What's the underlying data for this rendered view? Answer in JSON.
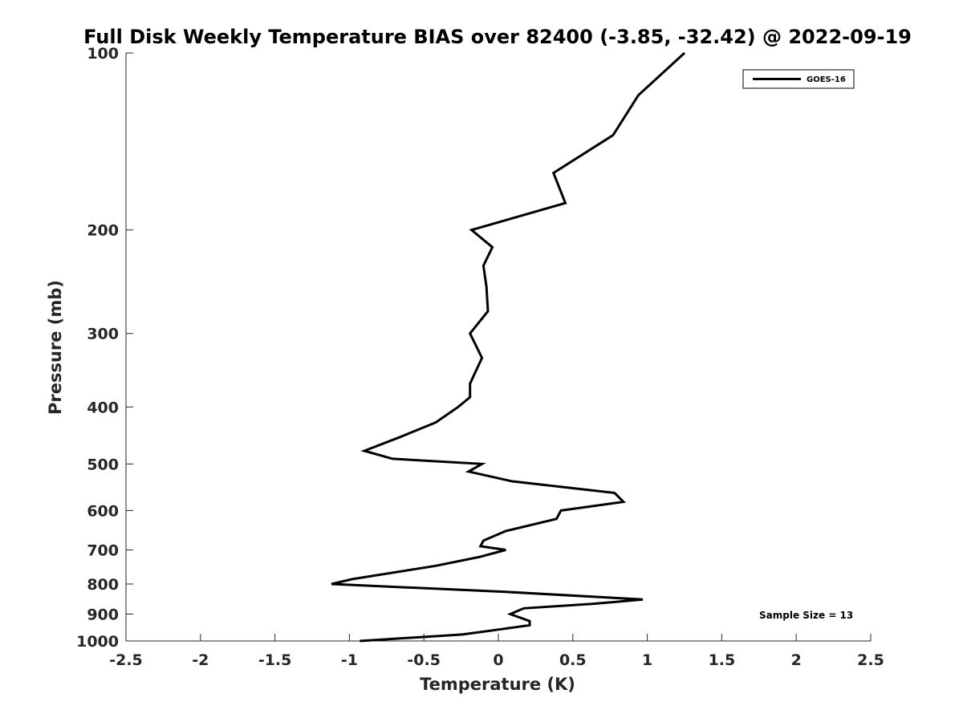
{
  "chart_data": {
    "type": "line",
    "title": "Full Disk Weekly Temperature BIAS over 82400 (-3.85, -32.42) @ 2022-09-19",
    "xlabel": "Temperature (K)",
    "ylabel": "Pressure (mb)",
    "xlim": [
      -2.5,
      2.5
    ],
    "ylim": [
      100,
      1000
    ],
    "y_scale": "log",
    "y_reversed": true,
    "grid": false,
    "legend_position": "top-right",
    "x_ticks": [
      -2.5,
      -2,
      -1.5,
      -1,
      -0.5,
      0,
      0.5,
      1,
      1.5,
      2,
      2.5
    ],
    "x_tick_labels": [
      "-2.5",
      "-2",
      "-1.5",
      "-1",
      "-0.5",
      "0",
      "0.5",
      "1",
      "1.5",
      "2",
      "2.5"
    ],
    "y_ticks": [
      100,
      200,
      300,
      400,
      500,
      600,
      700,
      800,
      900,
      1000
    ],
    "y_tick_labels": [
      "100",
      "200",
      "300",
      "400",
      "500",
      "600",
      "700",
      "800",
      "900",
      "1000"
    ],
    "annotation": "Sample Size = 13",
    "series": [
      {
        "name": "GOES-16",
        "color": "#000000",
        "points": [
          {
            "x": 1.25,
            "p": 100
          },
          {
            "x": 0.94,
            "p": 118
          },
          {
            "x": 0.77,
            "p": 138
          },
          {
            "x": 0.37,
            "p": 160
          },
          {
            "x": 0.45,
            "p": 180
          },
          {
            "x": -0.18,
            "p": 200
          },
          {
            "x": -0.04,
            "p": 214
          },
          {
            "x": -0.1,
            "p": 230
          },
          {
            "x": -0.08,
            "p": 250
          },
          {
            "x": -0.07,
            "p": 275
          },
          {
            "x": -0.19,
            "p": 300
          },
          {
            "x": -0.11,
            "p": 330
          },
          {
            "x": -0.19,
            "p": 365
          },
          {
            "x": -0.19,
            "p": 385
          },
          {
            "x": -0.27,
            "p": 400
          },
          {
            "x": -0.42,
            "p": 425
          },
          {
            "x": -0.66,
            "p": 450
          },
          {
            "x": -0.9,
            "p": 475
          },
          {
            "x": -0.71,
            "p": 490
          },
          {
            "x": -0.11,
            "p": 500
          },
          {
            "x": -0.2,
            "p": 515
          },
          {
            "x": 0.09,
            "p": 535
          },
          {
            "x": 0.78,
            "p": 560
          },
          {
            "x": 0.84,
            "p": 580
          },
          {
            "x": 0.42,
            "p": 600
          },
          {
            "x": 0.39,
            "p": 620
          },
          {
            "x": 0.05,
            "p": 650
          },
          {
            "x": -0.1,
            "p": 675
          },
          {
            "x": -0.12,
            "p": 690
          },
          {
            "x": 0.05,
            "p": 700
          },
          {
            "x": -0.13,
            "p": 720
          },
          {
            "x": -0.42,
            "p": 745
          },
          {
            "x": -0.98,
            "p": 785
          },
          {
            "x": -1.12,
            "p": 800
          },
          {
            "x": 0.05,
            "p": 825
          },
          {
            "x": 0.97,
            "p": 850
          },
          {
            "x": 0.63,
            "p": 865
          },
          {
            "x": 0.17,
            "p": 880
          },
          {
            "x": 0.08,
            "p": 900
          },
          {
            "x": 0.21,
            "p": 925
          },
          {
            "x": 0.21,
            "p": 940
          },
          {
            "x": 0.02,
            "p": 955
          },
          {
            "x": -0.24,
            "p": 975
          },
          {
            "x": -0.93,
            "p": 1000
          }
        ]
      }
    ]
  }
}
